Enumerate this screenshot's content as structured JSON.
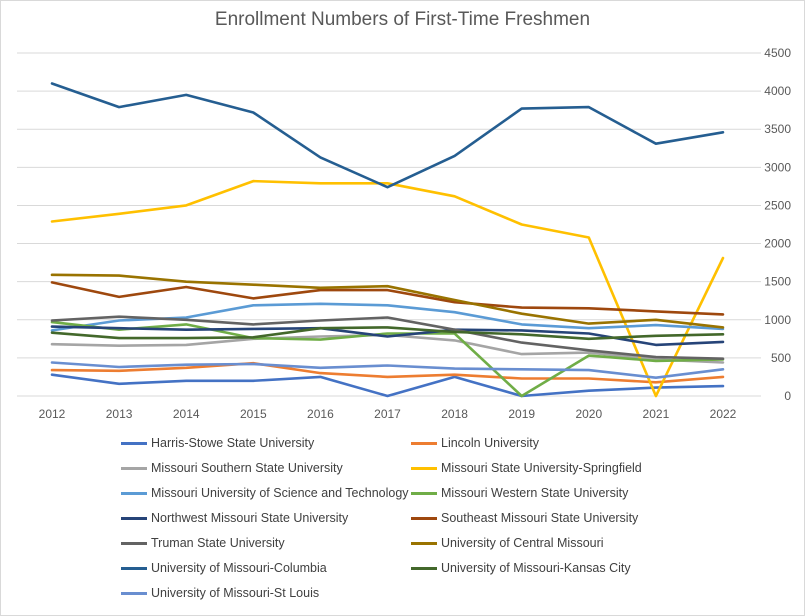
{
  "chart_data": {
    "type": "line",
    "title": "Enrollment Numbers of First-Time Freshmen",
    "xlabel": "",
    "ylabel": "",
    "x": [
      "2012",
      "2013",
      "2014",
      "2015",
      "2016",
      "2017",
      "2018",
      "2019",
      "2020",
      "2021",
      "2022"
    ],
    "ylim": [
      0,
      4500
    ],
    "yticks": [
      "0",
      "500",
      "1000",
      "1500",
      "2000",
      "2500",
      "3000",
      "3500",
      "4000",
      "4500"
    ],
    "y_axis_side": "right",
    "grid": true,
    "legend_position": "bottom",
    "series": [
      {
        "name": "Harris-Stowe State University",
        "color": "#4472c4",
        "values": [
          280,
          160,
          200,
          200,
          250,
          0,
          250,
          0,
          70,
          110,
          130
        ]
      },
      {
        "name": "Lincoln University",
        "color": "#ed7d31",
        "values": [
          340,
          330,
          370,
          430,
          300,
          250,
          280,
          230,
          230,
          180,
          250
        ]
      },
      {
        "name": "Missouri Southern State University",
        "color": "#a5a5a5",
        "values": [
          680,
          660,
          670,
          750,
          780,
          800,
          730,
          550,
          570,
          480,
          440
        ]
      },
      {
        "name": "Missouri State University-Springfield",
        "color": "#ffc000",
        "values": [
          2290,
          2390,
          2500,
          2820,
          2790,
          2790,
          2620,
          2250,
          2080,
          0,
          1810
        ]
      },
      {
        "name": "Missouri University of Science and Technology",
        "color": "#5b9bd5",
        "values": [
          860,
          990,
          1030,
          1190,
          1210,
          1190,
          1100,
          940,
          890,
          930,
          880
        ]
      },
      {
        "name": "Missouri Western State University",
        "color": "#70ad47",
        "values": [
          970,
          870,
          940,
          760,
          740,
          820,
          820,
          0,
          530,
          460,
          480
        ]
      },
      {
        "name": "Northwest Missouri State University",
        "color": "#264478",
        "values": [
          910,
          890,
          870,
          880,
          890,
          780,
          870,
          860,
          820,
          670,
          710
        ]
      },
      {
        "name": "Southeast Missouri State University",
        "color": "#9e480e",
        "values": [
          1490,
          1300,
          1430,
          1280,
          1390,
          1390,
          1230,
          1160,
          1150,
          1110,
          1070
        ]
      },
      {
        "name": "Truman State University",
        "color": "#636363",
        "values": [
          990,
          1040,
          1000,
          940,
          990,
          1030,
          870,
          700,
          600,
          510,
          490
        ]
      },
      {
        "name": "University of Central Missouri",
        "color": "#997300",
        "values": [
          1590,
          1580,
          1500,
          1460,
          1420,
          1440,
          1260,
          1080,
          950,
          1000,
          900
        ]
      },
      {
        "name": "University of Missouri-Columbia",
        "color": "#255e91",
        "values": [
          4100,
          3790,
          3950,
          3720,
          3130,
          2740,
          3150,
          3770,
          3790,
          3310,
          3460
        ]
      },
      {
        "name": "University of Missouri-Kansas City",
        "color": "#43682b",
        "values": [
          830,
          760,
          760,
          770,
          890,
          900,
          840,
          810,
          750,
          790,
          810
        ]
      },
      {
        "name": "University of Missouri-St Louis",
        "color": "#698ed0",
        "values": [
          440,
          380,
          410,
          420,
          370,
          400,
          360,
          350,
          340,
          240,
          350
        ]
      }
    ]
  }
}
